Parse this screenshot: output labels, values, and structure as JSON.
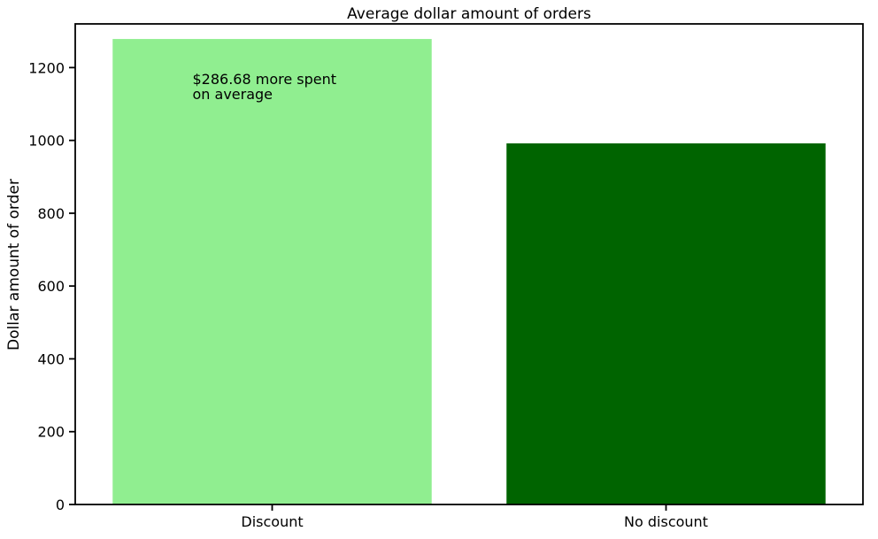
{
  "chart_data": {
    "type": "bar",
    "title": "Average dollar amount of orders",
    "xlabel": "",
    "ylabel": "Dollar amount of order",
    "categories": [
      "Discount",
      "No discount"
    ],
    "values": [
      1278.52,
      991.84
    ],
    "colors": [
      "#90ee90",
      "#006400"
    ],
    "ylim": [
      0,
      1320
    ],
    "yticks": [
      0,
      200,
      400,
      600,
      800,
      1000,
      1200
    ],
    "grid": false,
    "annotation": {
      "lines": [
        "$286.68 more spent",
        "on average"
      ],
      "x_category": 0,
      "y_value": 1155
    }
  }
}
